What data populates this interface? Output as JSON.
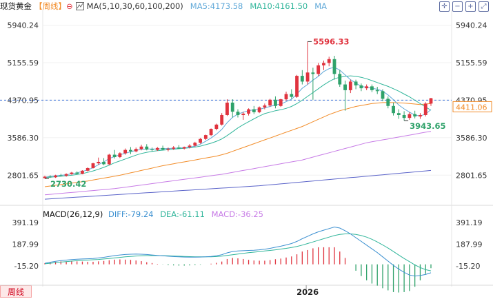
{
  "legend": {
    "title": "现货黄金",
    "period": "【周线】",
    "settings_glyph": "⊖",
    "ma_label": "MA(5,10,30,60,100,200)",
    "ma5": "MA5:4173.58",
    "ma10": "MA10:4161.50",
    "ma_more": "MA"
  },
  "macd_legend": {
    "title": "MACD(26,12,9)",
    "diff": "DIFF:-79.24",
    "dea": "DEA:-61.11",
    "macd": "MACD:-36.25"
  },
  "period_tag": "周线",
  "x_label": "2026",
  "colors": {
    "up": "#e0333e",
    "down": "#2fa26a",
    "ma5": "#5fa8d8",
    "ma10": "#2fb59a",
    "ma30": "#f28c28",
    "ma60": "#c77be6",
    "ma100": "#5a63c9",
    "current": "#f28c28"
  },
  "chart_data": [
    {
      "type": "candlestick",
      "title": "现货黄金 周线",
      "y_ticks": [
        "5940.24",
        "5155.59",
        "4370.95",
        "3586.30",
        "2801.65"
      ],
      "ylim": [
        2200,
        6150
      ],
      "current_price": "4411.06",
      "current_line_price": 4370.95,
      "annotations": [
        {
          "label": "5596.33",
          "value": 5596.33,
          "kind": "high"
        },
        {
          "label": "3943.65",
          "value": 3943.65,
          "kind": "low"
        },
        {
          "label": "2730.42",
          "value": 2730.42,
          "kind": "low"
        }
      ],
      "ohlc": [
        [
          2740,
          2790,
          2730,
          2770
        ],
        [
          2770,
          2800,
          2745,
          2758
        ],
        [
          2758,
          2810,
          2745,
          2795
        ],
        [
          2795,
          2830,
          2775,
          2790
        ],
        [
          2790,
          2840,
          2770,
          2825
        ],
        [
          2825,
          2870,
          2810,
          2855
        ],
        [
          2855,
          2880,
          2815,
          2830
        ],
        [
          2830,
          2905,
          2820,
          2895
        ],
        [
          2895,
          2965,
          2880,
          2950
        ],
        [
          2950,
          3060,
          2940,
          3050
        ],
        [
          3050,
          3170,
          3020,
          3080
        ],
        [
          3080,
          3160,
          3010,
          3030
        ],
        [
          3030,
          3250,
          3010,
          3230
        ],
        [
          3230,
          3330,
          3150,
          3180
        ],
        [
          3180,
          3280,
          3160,
          3260
        ],
        [
          3260,
          3360,
          3230,
          3330
        ],
        [
          3330,
          3390,
          3240,
          3300
        ],
        [
          3300,
          3380,
          3280,
          3350
        ],
        [
          3350,
          3440,
          3320,
          3400
        ],
        [
          3400,
          3450,
          3320,
          3340
        ],
        [
          3340,
          3380,
          3300,
          3330
        ],
        [
          3330,
          3390,
          3310,
          3370
        ],
        [
          3370,
          3420,
          3320,
          3335
        ],
        [
          3335,
          3380,
          3300,
          3355
        ],
        [
          3355,
          3410,
          3330,
          3380
        ],
        [
          3380,
          3430,
          3350,
          3360
        ],
        [
          3360,
          3400,
          3340,
          3390
        ],
        [
          3390,
          3450,
          3360,
          3420
        ],
        [
          3420,
          3500,
          3400,
          3480
        ],
        [
          3480,
          3580,
          3460,
          3560
        ],
        [
          3560,
          3650,
          3540,
          3640
        ],
        [
          3640,
          3780,
          3620,
          3770
        ],
        [
          3770,
          3880,
          3740,
          3860
        ],
        [
          3860,
          4100,
          3840,
          4060
        ],
        [
          4060,
          4390,
          4040,
          4320
        ],
        [
          4320,
          4390,
          4010,
          4130
        ],
        [
          4130,
          4180,
          4010,
          4060
        ],
        [
          4060,
          4130,
          3960,
          4090
        ],
        [
          4090,
          4200,
          4050,
          4180
        ],
        [
          4180,
          4250,
          4080,
          4120
        ],
        [
          4120,
          4240,
          4100,
          4220
        ],
        [
          4220,
          4300,
          4180,
          4260
        ],
        [
          4260,
          4400,
          4230,
          4380
        ],
        [
          4380,
          4450,
          4200,
          4250
        ],
        [
          4250,
          4400,
          4230,
          4390
        ],
        [
          4390,
          4550,
          4360,
          4500
        ],
        [
          4500,
          4600,
          4400,
          4440
        ],
        [
          4440,
          4900,
          4420,
          4880
        ],
        [
          4880,
          5000,
          4700,
          4760
        ],
        [
          4760,
          5596,
          4700,
          4950
        ],
        [
          4950,
          5050,
          4380,
          4920
        ],
        [
          4920,
          5150,
          4880,
          5100
        ],
        [
          5100,
          5200,
          5000,
          5150
        ],
        [
          5150,
          5280,
          5080,
          5230
        ],
        [
          5230,
          5300,
          4800,
          4920
        ],
        [
          4920,
          5000,
          4650,
          4700
        ],
        [
          4700,
          4780,
          4150,
          4580
        ],
        [
          4580,
          4800,
          4520,
          4760
        ],
        [
          4760,
          4800,
          4600,
          4680
        ],
        [
          4680,
          4720,
          4560,
          4620
        ],
        [
          4620,
          4700,
          4580,
          4660
        ],
        [
          4660,
          4700,
          4540,
          4580
        ],
        [
          4580,
          4650,
          4500,
          4560
        ],
        [
          4560,
          4600,
          4350,
          4400
        ],
        [
          4400,
          4450,
          4200,
          4250
        ],
        [
          4250,
          4320,
          4050,
          4100
        ],
        [
          4100,
          4180,
          3980,
          4060
        ],
        [
          4060,
          4140,
          3944,
          4000
        ],
        [
          4000,
          4120,
          3960,
          4080
        ],
        [
          4080,
          4150,
          3990,
          4030
        ],
        [
          4030,
          4100,
          3980,
          4060
        ],
        [
          4060,
          4330,
          4030,
          4300
        ],
        [
          4300,
          4420,
          4250,
          4411
        ]
      ],
      "ma5": [
        2760,
        2775,
        2790,
        2800,
        2810,
        2830,
        2850,
        2880,
        2910,
        2960,
        3020,
        3080,
        3150,
        3190,
        3230,
        3260,
        3290,
        3320,
        3340,
        3350,
        3350,
        3350,
        3355,
        3360,
        3365,
        3370,
        3375,
        3385,
        3410,
        3450,
        3510,
        3580,
        3660,
        3760,
        3900,
        4010,
        4080,
        4120,
        4150,
        4170,
        4180,
        4210,
        4240,
        4270,
        4290,
        4340,
        4390,
        4500,
        4620,
        4700,
        4790,
        4870,
        4970,
        5030,
        5060,
        5000,
        4900,
        4800,
        4730,
        4660,
        4640,
        4620,
        4600,
        4560,
        4480,
        4380,
        4270,
        4190,
        4120,
        4060,
        4040,
        4080,
        4174
      ],
      "ma10": [
        2750,
        2760,
        2770,
        2780,
        2790,
        2800,
        2815,
        2835,
        2860,
        2890,
        2925,
        2965,
        3010,
        3060,
        3100,
        3140,
        3180,
        3220,
        3255,
        3280,
        3300,
        3315,
        3325,
        3335,
        3345,
        3355,
        3365,
        3375,
        3390,
        3410,
        3440,
        3470,
        3510,
        3560,
        3630,
        3710,
        3790,
        3860,
        3920,
        3980,
        4040,
        4090,
        4120,
        4150,
        4170,
        4200,
        4240,
        4300,
        4370,
        4450,
        4530,
        4610,
        4690,
        4760,
        4820,
        4850,
        4870,
        4880,
        4870,
        4850,
        4820,
        4780,
        4740,
        4700,
        4660,
        4610,
        4560,
        4500,
        4440,
        4370,
        4300,
        4230,
        4161
      ],
      "ma30": [
        2560,
        2575,
        2590,
        2605,
        2620,
        2635,
        2650,
        2665,
        2680,
        2700,
        2720,
        2740,
        2760,
        2780,
        2800,
        2825,
        2850,
        2875,
        2900,
        2925,
        2950,
        2975,
        3000,
        3020,
        3040,
        3060,
        3080,
        3100,
        3120,
        3140,
        3160,
        3180,
        3200,
        3230,
        3260,
        3300,
        3340,
        3380,
        3420,
        3460,
        3500,
        3540,
        3580,
        3620,
        3660,
        3700,
        3740,
        3780,
        3820,
        3870,
        3920,
        3970,
        4020,
        4070,
        4110,
        4150,
        4180,
        4210,
        4240,
        4260,
        4280,
        4300,
        4310,
        4320,
        4320,
        4320,
        4315,
        4310,
        4300,
        4290,
        4280,
        4290,
        4300
      ],
      "ma60": [
        2390,
        2400,
        2410,
        2420,
        2430,
        2440,
        2450,
        2460,
        2470,
        2480,
        2490,
        2500,
        2510,
        2520,
        2535,
        2550,
        2565,
        2580,
        2595,
        2610,
        2625,
        2640,
        2655,
        2670,
        2685,
        2700,
        2715,
        2730,
        2745,
        2760,
        2775,
        2790,
        2805,
        2820,
        2840,
        2860,
        2880,
        2900,
        2920,
        2940,
        2960,
        2980,
        3000,
        3020,
        3040,
        3060,
        3080,
        3100,
        3120,
        3150,
        3180,
        3210,
        3240,
        3270,
        3300,
        3330,
        3360,
        3390,
        3420,
        3450,
        3480,
        3500,
        3520,
        3540,
        3560,
        3580,
        3600,
        3620,
        3640,
        3660,
        3680,
        3700,
        3720
      ],
      "ma100": [
        2300,
        2307,
        2314,
        2321,
        2328,
        2335,
        2342,
        2349,
        2356,
        2363,
        2370,
        2377,
        2384,
        2391,
        2398,
        2405,
        2412,
        2419,
        2426,
        2433,
        2440,
        2447,
        2454,
        2461,
        2468,
        2475,
        2482,
        2489,
        2496,
        2503,
        2510,
        2517,
        2524,
        2531,
        2538,
        2545,
        2552,
        2559,
        2566,
        2573,
        2580,
        2590,
        2600,
        2610,
        2620,
        2630,
        2640,
        2650,
        2660,
        2670,
        2680,
        2690,
        2700,
        2710,
        2720,
        2730,
        2740,
        2750,
        2760,
        2770,
        2780,
        2790,
        2800,
        2810,
        2820,
        2830,
        2840,
        2850,
        2860,
        2870,
        2880,
        2890,
        2900
      ]
    },
    {
      "type": "macd",
      "title": "MACD(26,12,9)",
      "y_ticks": [
        "391.19",
        "187.99",
        "-15.20"
      ],
      "ylim": [
        -170,
        450
      ],
      "diff": [
        10,
        20,
        28,
        35,
        40,
        45,
        48,
        50,
        52,
        55,
        60,
        66,
        74,
        82,
        88,
        92,
        95,
        96,
        95,
        92,
        88,
        84,
        80,
        76,
        73,
        70,
        68,
        67,
        67,
        68,
        70,
        74,
        80,
        90,
        108,
        120,
        125,
        128,
        130,
        132,
        136,
        142,
        150,
        160,
        170,
        182,
        195,
        215,
        240,
        262,
        285,
        305,
        320,
        335,
        350,
        340,
        315,
        285,
        250,
        215,
        180,
        145,
        110,
        70,
        30,
        -10,
        -45,
        -75,
        -100,
        -110,
        -105,
        -95,
        -79
      ],
      "dea": [
        5,
        10,
        16,
        21,
        26,
        30,
        34,
        37,
        40,
        43,
        46,
        50,
        55,
        60,
        65,
        70,
        74,
        78,
        80,
        82,
        82,
        82,
        81,
        80,
        78,
        76,
        74,
        72,
        71,
        70,
        70,
        71,
        73,
        77,
        83,
        90,
        97,
        103,
        109,
        114,
        119,
        125,
        130,
        136,
        143,
        150,
        158,
        168,
        180,
        195,
        210,
        225,
        240,
        255,
        270,
        280,
        285,
        285,
        280,
        270,
        255,
        235,
        210,
        182,
        152,
        120,
        87,
        55,
        25,
        -5,
        -30,
        -50,
        -61
      ],
      "hist": [
        10,
        20,
        24,
        28,
        28,
        30,
        28,
        26,
        24,
        24,
        28,
        32,
        38,
        44,
        46,
        44,
        42,
        36,
        30,
        20,
        12,
        4,
        -2,
        -8,
        -10,
        -12,
        -12,
        -10,
        -8,
        -4,
        0,
        6,
        14,
        26,
        50,
        60,
        56,
        50,
        42,
        36,
        34,
        34,
        40,
        48,
        54,
        64,
        74,
        94,
        120,
        134,
        150,
        160,
        160,
        160,
        160,
        120,
        60,
        0,
        -60,
        -110,
        -150,
        -180,
        -200,
        -224,
        -244,
        -260,
        -264,
        -260,
        -250,
        -210,
        -150,
        -90,
        -36
      ]
    }
  ]
}
